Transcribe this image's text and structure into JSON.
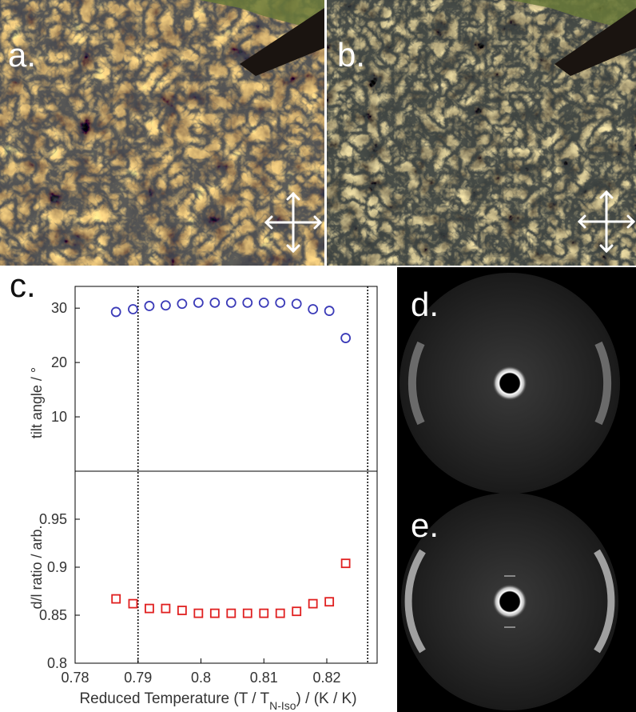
{
  "panels": {
    "a": "a.",
    "b": "b.",
    "c": "c.",
    "d": "d.",
    "e": "e."
  },
  "chart_data": [
    {
      "type": "scatter",
      "panel": "c (top)",
      "title": "",
      "xlabel": "Reduced Temperature (T / T",
      "xlabel_subscript": "N-Iso",
      "xlabel_tail": ") / (K / K)",
      "ylabel": "tilt angle / °",
      "xlim": [
        0.78,
        0.828
      ],
      "ylim": [
        0,
        34
      ],
      "yticks": [
        "10",
        "20",
        "30"
      ],
      "ytick_values": [
        10,
        20,
        30
      ],
      "marker": "circle",
      "color": "#3b3bb8",
      "x": [
        0.7865,
        0.7892,
        0.7918,
        0.7944,
        0.797,
        0.7996,
        0.8022,
        0.8048,
        0.8074,
        0.81,
        0.8126,
        0.8152,
        0.8178,
        0.8204,
        0.823
      ],
      "y": [
        29.3,
        29.8,
        30.4,
        30.5,
        30.8,
        31.0,
        31.0,
        31.0,
        31.0,
        31.0,
        31.0,
        30.8,
        29.8,
        29.5,
        24.5
      ],
      "vlines": [
        0.79,
        0.8265
      ]
    },
    {
      "type": "scatter",
      "panel": "c (bottom)",
      "title": "",
      "xlabel": "Reduced Temperature (T / T",
      "xlabel_subscript": "N-Iso",
      "xlabel_tail": ") / (K / K)",
      "ylabel": "d/l ratio / arb.",
      "xlim": [
        0.78,
        0.828
      ],
      "ylim": [
        0.8,
        1.0
      ],
      "xticks": [
        "0.78",
        "0.79",
        "0.8",
        "0.81",
        "0.82"
      ],
      "xtick_values": [
        0.78,
        0.79,
        0.8,
        0.81,
        0.82
      ],
      "yticks": [
        "0.8",
        "0.85",
        "0.9",
        "0.95"
      ],
      "ytick_values": [
        0.8,
        0.85,
        0.9,
        0.95
      ],
      "marker": "square",
      "color": "#e02020",
      "x": [
        0.7865,
        0.7892,
        0.7918,
        0.7944,
        0.797,
        0.7996,
        0.8022,
        0.8048,
        0.8074,
        0.81,
        0.8126,
        0.8152,
        0.8178,
        0.8204,
        0.823
      ],
      "y": [
        0.867,
        0.862,
        0.857,
        0.857,
        0.855,
        0.852,
        0.852,
        0.852,
        0.852,
        0.852,
        0.852,
        0.854,
        0.862,
        0.864,
        0.904
      ],
      "vlines": [
        0.79,
        0.8265
      ]
    }
  ]
}
